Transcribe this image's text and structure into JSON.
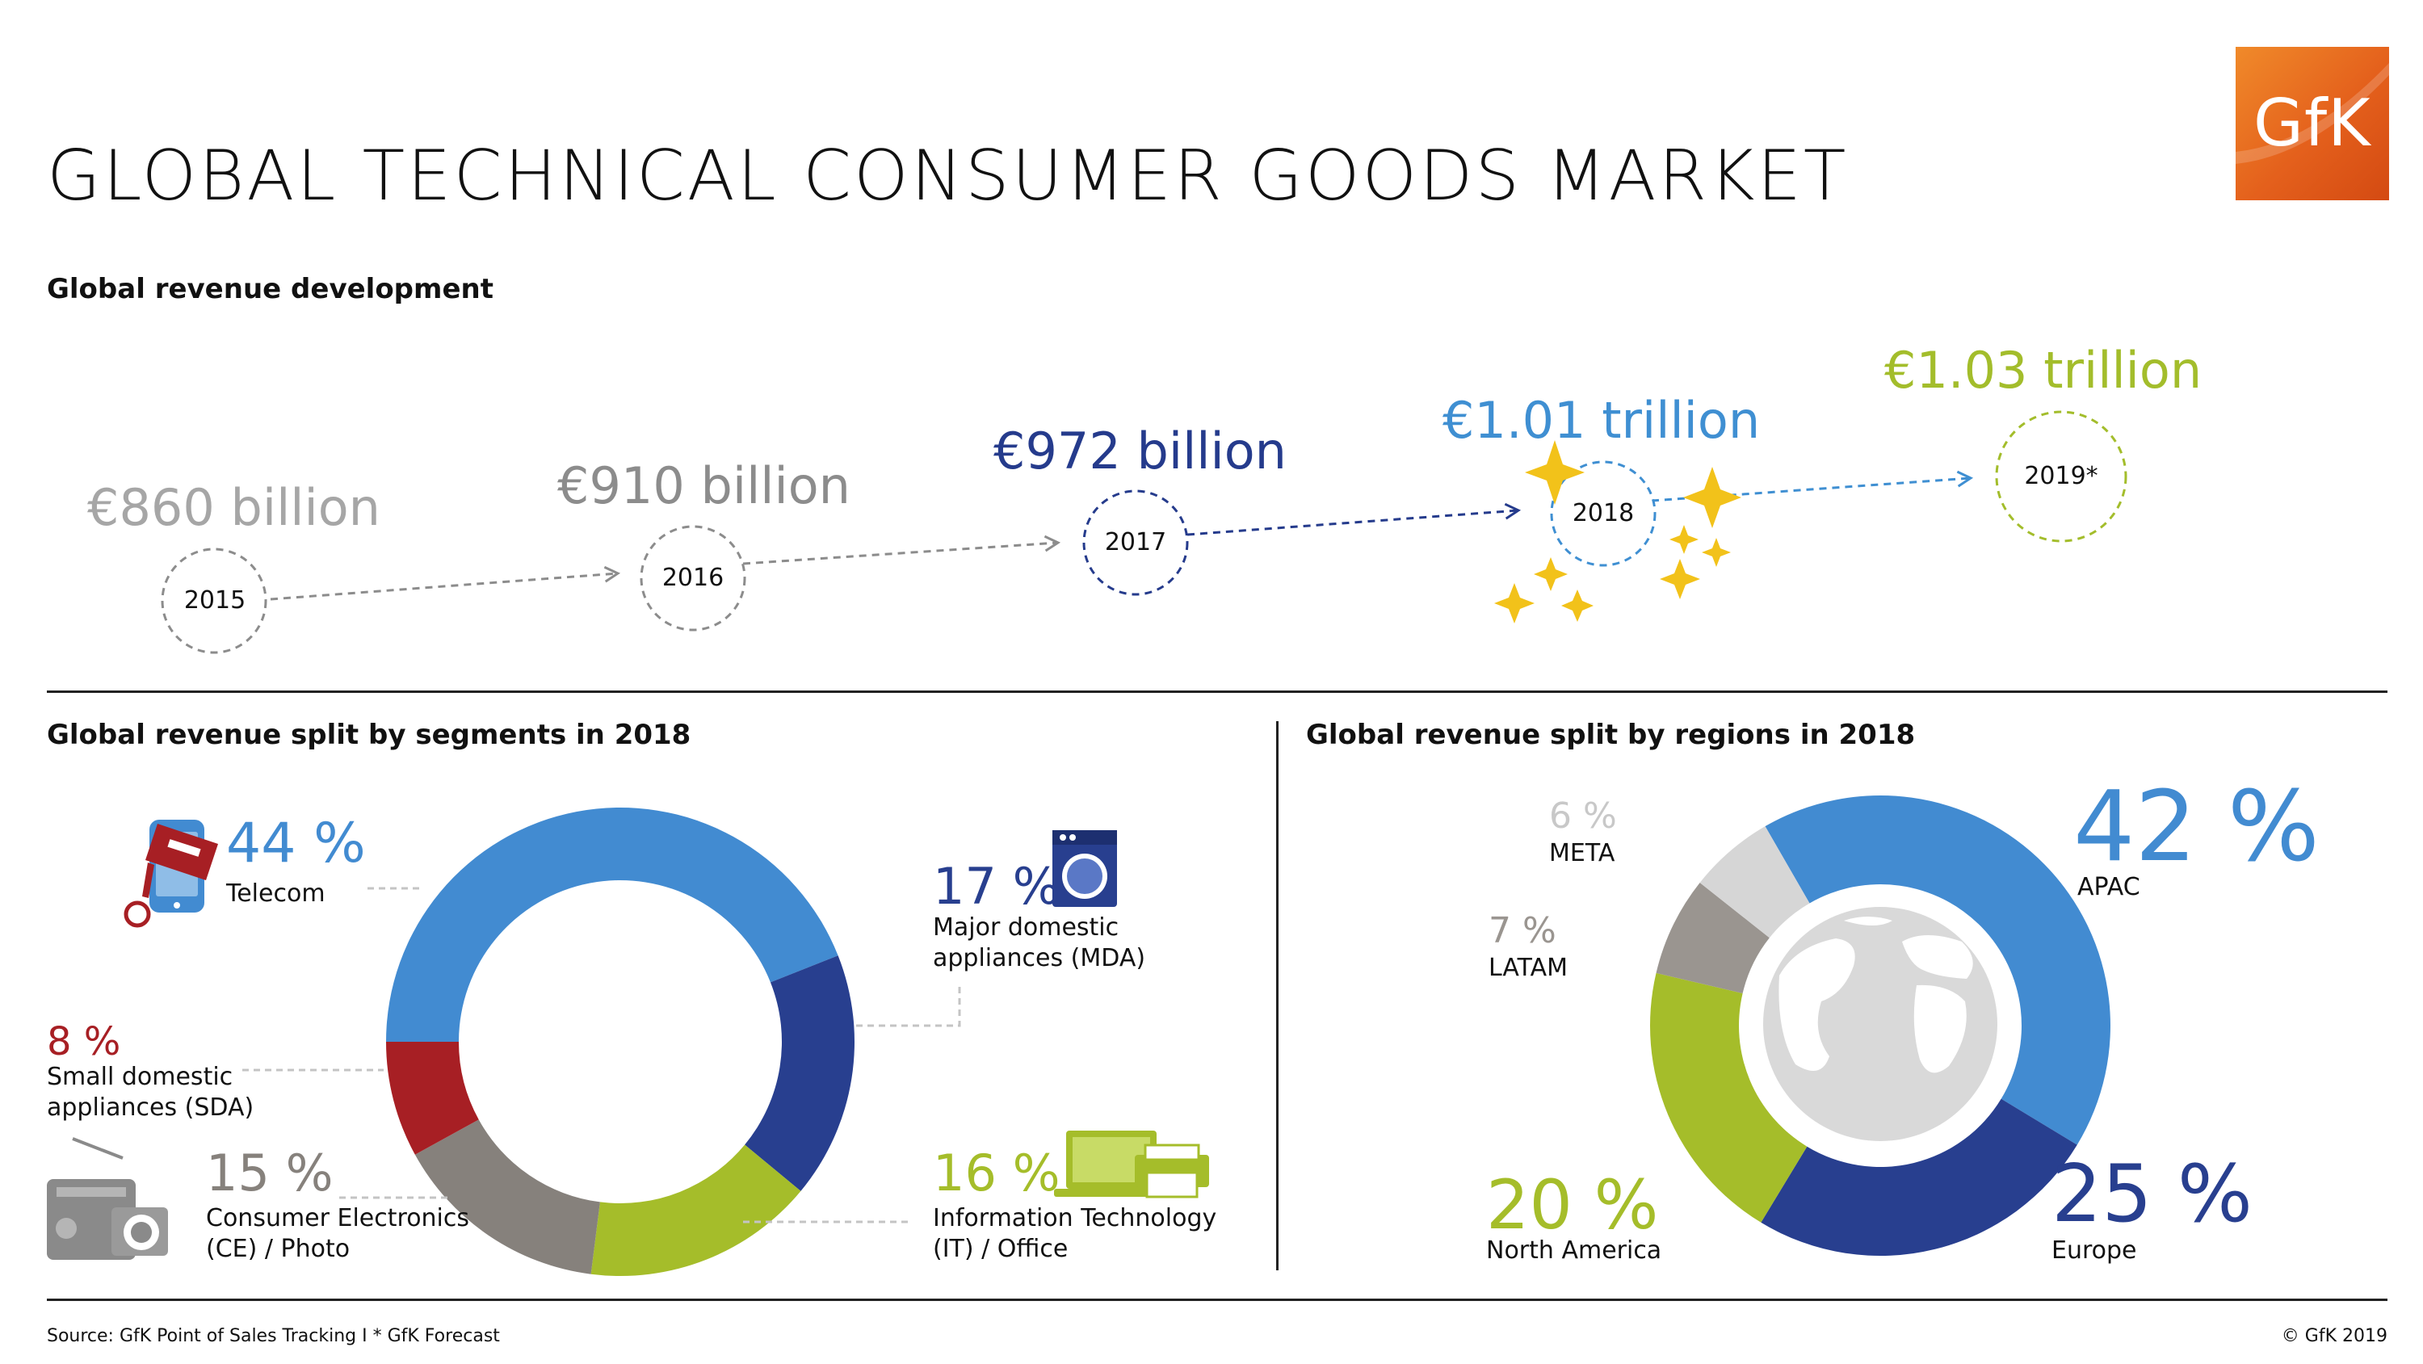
{
  "header": {
    "title": "GLOBAL TECHNICAL CONSUMER GOODS MARKET",
    "logo_text": "GfK"
  },
  "sections": {
    "development": "Global revenue development",
    "segments": "Global revenue split by segments in 2018",
    "regions": "Global revenue split by regions in 2018"
  },
  "timeline": [
    {
      "year": "2015",
      "label": "€860 billion",
      "color": "#a6a6a6"
    },
    {
      "year": "2016",
      "label": "€910 billion",
      "color": "#8c8c8c"
    },
    {
      "year": "2017",
      "label": "€972 billion",
      "color": "#253b8c"
    },
    {
      "year": "2018",
      "label": "€1.01 trillion",
      "color": "#3f8fd2"
    },
    {
      "year": "2019*",
      "label": "€1.03 trillion",
      "color": "#a3bd2b"
    }
  ],
  "segments": [
    {
      "pct": "44 %",
      "label": "Telecom",
      "color": "#428bd1"
    },
    {
      "pct": "17 %",
      "label": "Major domestic appliances (MDA)",
      "color": "#283f8f"
    },
    {
      "pct": "16 %",
      "label": "Information Technology (IT) / Office",
      "color": "#a5bd2a"
    },
    {
      "pct": "15 %",
      "label": "Consumer Electronics (CE) / Photo",
      "color": "#86817c"
    },
    {
      "pct": "8 %",
      "label": "Small domestic appliances (SDA)",
      "color": "#a71f24"
    }
  ],
  "regions": [
    {
      "pct": "42 %",
      "label": "APAC",
      "color": "#428bd1"
    },
    {
      "pct": "25 %",
      "label": "Europe",
      "color": "#283f8f"
    },
    {
      "pct": "20 %",
      "label": "North America",
      "color": "#a5bd2a"
    },
    {
      "pct": "7 %",
      "label": "LATAM",
      "color": "#9a9590"
    },
    {
      "pct": "6 %",
      "label": "META",
      "color": "#d6d6d6"
    }
  ],
  "footer": {
    "source": "Source: GfK Point of Sales Tracking I * GfK Forecast",
    "copyright": "© GfK 2019"
  },
  "chart_data": [
    {
      "type": "line",
      "title": "Global revenue development",
      "categories": [
        "2015",
        "2016",
        "2017",
        "2018",
        "2019*"
      ],
      "unit": "€ billion",
      "values": [
        860,
        910,
        972,
        1010,
        1030
      ]
    },
    {
      "type": "pie",
      "title": "Global revenue split by segments in 2018",
      "categories": [
        "Telecom",
        "Major domestic appliances (MDA)",
        "Information Technology (IT) / Office",
        "Consumer Electronics (CE) / Photo",
        "Small domestic appliances (SDA)"
      ],
      "values": [
        44,
        17,
        16,
        15,
        8
      ]
    },
    {
      "type": "pie",
      "title": "Global revenue split by regions in 2018",
      "categories": [
        "APAC",
        "Europe",
        "North America",
        "LATAM",
        "META"
      ],
      "values": [
        42,
        25,
        20,
        7,
        6
      ]
    }
  ]
}
